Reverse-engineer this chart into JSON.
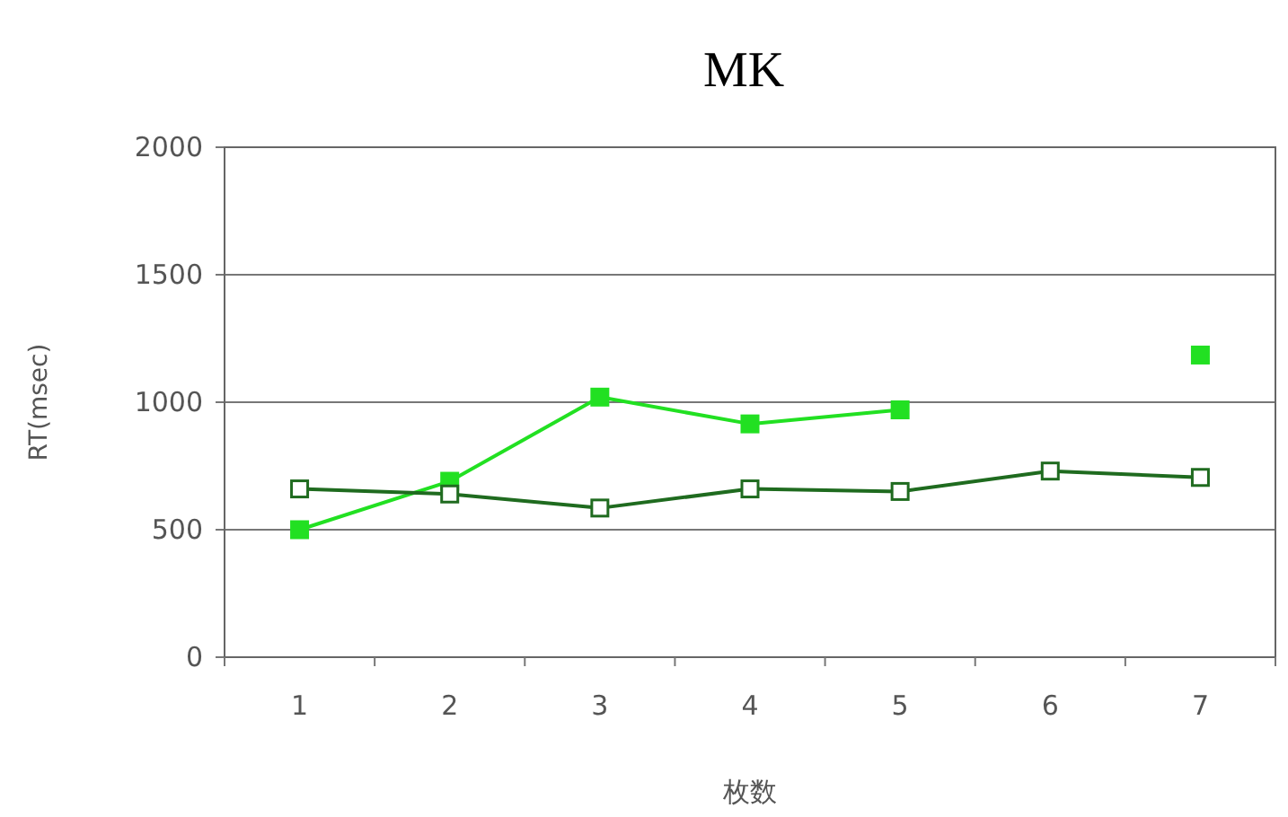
{
  "chart_data": {
    "type": "line",
    "title": "MK",
    "xlabel": "枚数",
    "ylabel": "RT(msec)",
    "categories": [
      "1",
      "2",
      "3",
      "4",
      "5",
      "6",
      "7"
    ],
    "series": [
      {
        "color": "#22e022",
        "values": [
          500,
          690,
          1020,
          915,
          970,
          null,
          1185
        ]
      },
      {
        "color": "#1f6b1f",
        "values": [
          660,
          640,
          585,
          660,
          650,
          730,
          705
        ]
      }
    ],
    "ylim": [
      0,
      2000
    ],
    "yticks": [
      0,
      500,
      1000,
      1500,
      2000
    ],
    "grid": "y",
    "marker": "square",
    "line_style": "solid"
  }
}
